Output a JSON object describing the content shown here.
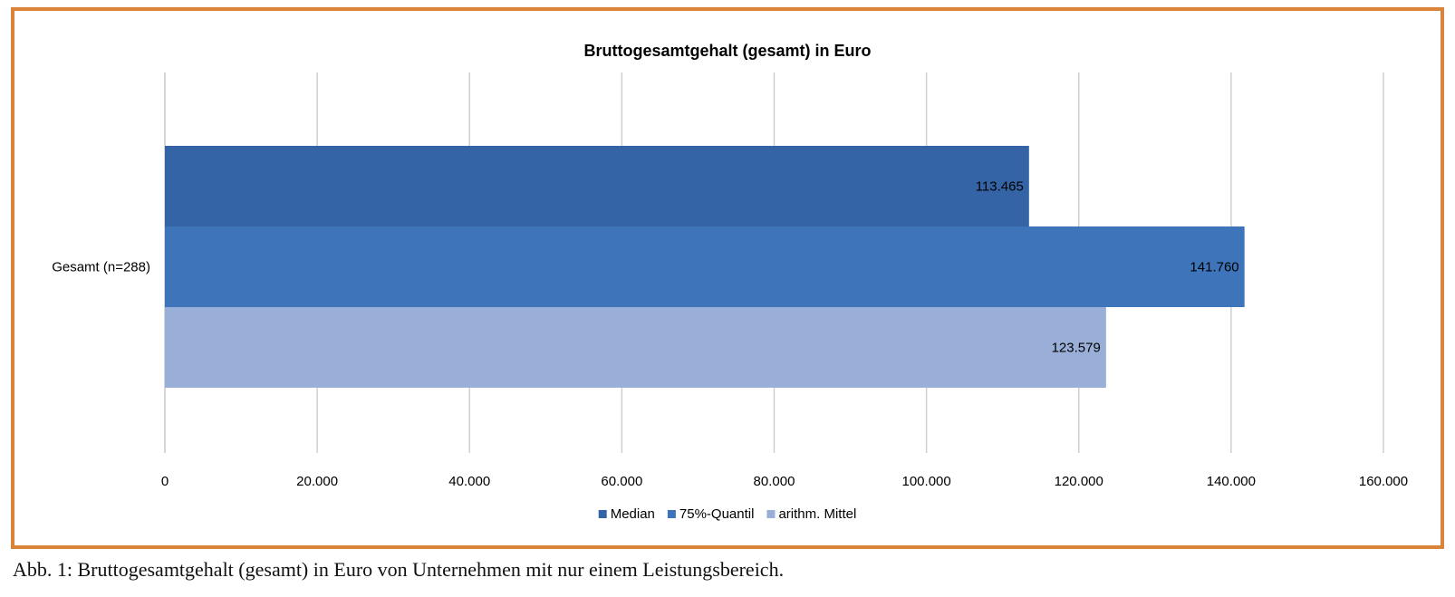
{
  "chart_data": {
    "type": "bar",
    "orientation": "horizontal",
    "title": "Bruttogesamtgehalt (gesamt) in Euro",
    "categories": [
      "Gesamt (n=288)"
    ],
    "series": [
      {
        "name": "Median",
        "values": [
          113465
        ],
        "labels": [
          "113.465"
        ],
        "color": "#3564a6"
      },
      {
        "name": "75%-Quantil",
        "values": [
          141760
        ],
        "labels": [
          "141.760"
        ],
        "color": "#3d74ba"
      },
      {
        "name": "arithm. Mittel",
        "values": [
          123579
        ],
        "labels": [
          "123.579"
        ],
        "color": "#9aafd8"
      }
    ],
    "xlim": [
      0,
      160000
    ],
    "xticks": [
      0,
      20000,
      40000,
      60000,
      80000,
      100000,
      120000,
      140000,
      160000
    ],
    "xtick_labels": [
      "0",
      "20.000",
      "40.000",
      "60.000",
      "80.000",
      "100.000",
      "120.000",
      "140.000",
      "160.000"
    ],
    "xlabel": "",
    "ylabel": "",
    "grid": true,
    "legend_position": "bottom-center"
  },
  "caption": "Abb. 1: Bruttogesamtgehalt (gesamt) in Euro von Unternehmen mit nur einem Leistungsbereich."
}
